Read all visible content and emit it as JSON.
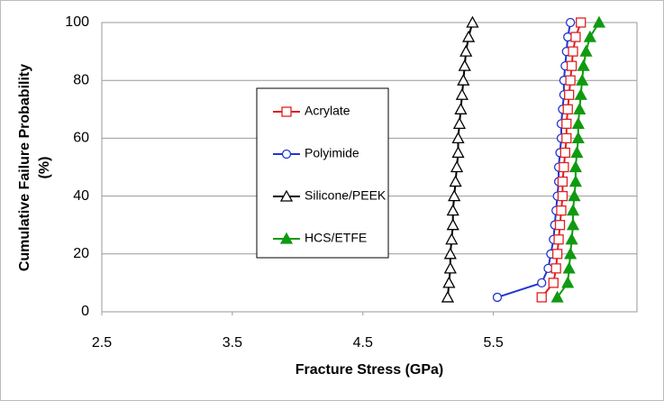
{
  "chart_data": {
    "type": "line",
    "xlabel": "Fracture Stress (GPa)",
    "ylabel": [
      "Cumulative Failure Probability",
      "(%)"
    ],
    "xlim": [
      2.5,
      6.6
    ],
    "xticks": [
      2.5,
      3.5,
      4.5,
      5.5
    ],
    "ylim": [
      0,
      100
    ],
    "yticks": [
      0,
      20,
      40,
      60,
      80,
      100
    ],
    "grid": true,
    "y": [
      5,
      10,
      15,
      20,
      25,
      30,
      35,
      40,
      45,
      50,
      55,
      60,
      65,
      70,
      75,
      80,
      85,
      90,
      95,
      100
    ],
    "series": [
      {
        "name": "Acrylate",
        "color": "#e02020",
        "marker": "square",
        "filled": false,
        "values": [
          5.87,
          5.96,
          5.98,
          5.99,
          6.0,
          6.01,
          6.02,
          6.03,
          6.03,
          6.04,
          6.05,
          6.06,
          6.06,
          6.07,
          6.08,
          6.09,
          6.1,
          6.11,
          6.13,
          6.17
        ]
      },
      {
        "name": "Polyimide",
        "color": "#2035d0",
        "marker": "circle",
        "filled": false,
        "values": [
          5.53,
          5.87,
          5.92,
          5.94,
          5.96,
          5.97,
          5.98,
          5.99,
          6.0,
          6.0,
          6.01,
          6.02,
          6.02,
          6.03,
          6.04,
          6.04,
          6.05,
          6.06,
          6.07,
          6.09
        ]
      },
      {
        "name": "Silicone/PEEK",
        "color": "#000000",
        "marker": "triangle",
        "filled": false,
        "values": [
          5.15,
          5.16,
          5.17,
          5.17,
          5.18,
          5.19,
          5.19,
          5.2,
          5.21,
          5.22,
          5.23,
          5.23,
          5.24,
          5.25,
          5.26,
          5.27,
          5.28,
          5.29,
          5.31,
          5.34
        ]
      },
      {
        "name": "HCS/ETFE",
        "color": "#109a10",
        "marker": "triangle",
        "filled": true,
        "values": [
          5.99,
          6.07,
          6.08,
          6.09,
          6.1,
          6.11,
          6.11,
          6.12,
          6.13,
          6.13,
          6.14,
          6.15,
          6.15,
          6.16,
          6.17,
          6.18,
          6.19,
          6.21,
          6.24,
          6.31
        ]
      }
    ]
  }
}
